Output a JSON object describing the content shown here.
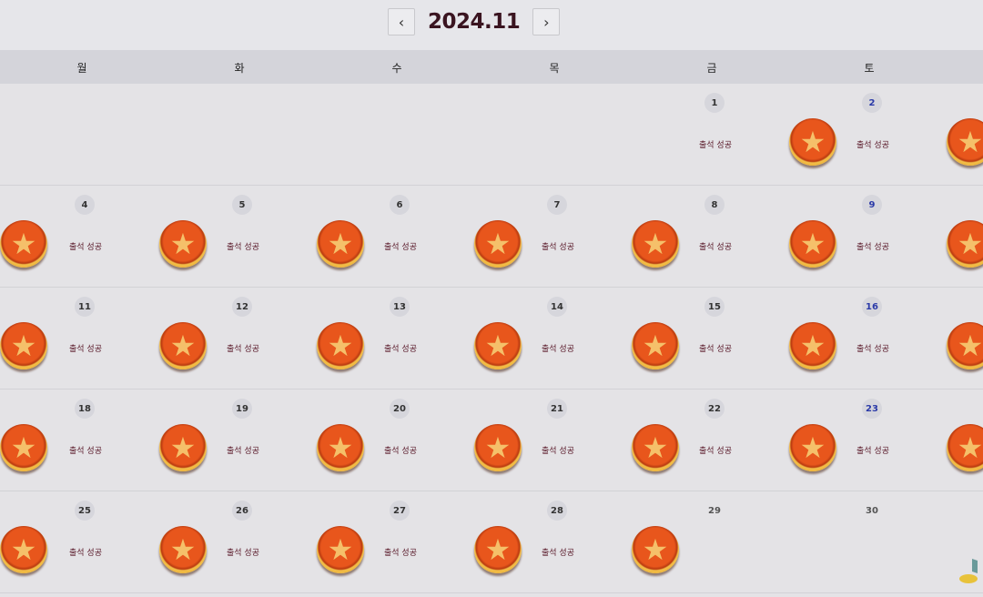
{
  "header": {
    "month": "2024.11",
    "prev_icon": "chevron-left-icon",
    "next_icon": "chevron-right-icon"
  },
  "weekdays": [
    "월",
    "화",
    "수",
    "목",
    "금",
    "토"
  ],
  "colors": {
    "saturday": "#2b3aa8",
    "title": "#3a1420",
    "coin": "#e8561c"
  },
  "weeks": [
    {
      "leading_coin": false,
      "days": [
        null,
        null,
        null,
        null,
        {
          "date": "1",
          "status": "출석 성공",
          "coin": true
        },
        {
          "date": "2",
          "status": "출석 성공",
          "coin": true
        }
      ]
    },
    {
      "leading_coin": true,
      "days": [
        {
          "date": "4",
          "status": "출석 성공",
          "coin": true
        },
        {
          "date": "5",
          "status": "출석 성공",
          "coin": true
        },
        {
          "date": "6",
          "status": "출석 성공",
          "coin": true
        },
        {
          "date": "7",
          "status": "출석 성공",
          "coin": true
        },
        {
          "date": "8",
          "status": "출석 성공",
          "coin": true
        },
        {
          "date": "9",
          "status": "출석 성공",
          "coin": true
        }
      ]
    },
    {
      "leading_coin": true,
      "days": [
        {
          "date": "11",
          "status": "출석 성공",
          "coin": true
        },
        {
          "date": "12",
          "status": "출석 성공",
          "coin": true
        },
        {
          "date": "13",
          "status": "출석 성공",
          "coin": true
        },
        {
          "date": "14",
          "status": "출석 성공",
          "coin": true
        },
        {
          "date": "15",
          "status": "출석 성공",
          "coin": true
        },
        {
          "date": "16",
          "status": "출석 성공",
          "coin": true
        }
      ]
    },
    {
      "leading_coin": true,
      "days": [
        {
          "date": "18",
          "status": "출석 성공",
          "coin": true
        },
        {
          "date": "19",
          "status": "출석 성공",
          "coin": true
        },
        {
          "date": "20",
          "status": "출석 성공",
          "coin": true
        },
        {
          "date": "21",
          "status": "출석 성공",
          "coin": true
        },
        {
          "date": "22",
          "status": "출석 성공",
          "coin": true
        },
        {
          "date": "23",
          "status": "출석 성공",
          "coin": true
        }
      ]
    },
    {
      "leading_coin": true,
      "days": [
        {
          "date": "25",
          "status": "출석 성공",
          "coin": true
        },
        {
          "date": "26",
          "status": "출석 성공",
          "coin": true
        },
        {
          "date": "27",
          "status": "출석 성공",
          "coin": true
        },
        {
          "date": "28",
          "status": "출석 성공",
          "coin": true
        },
        {
          "date": "29",
          "status": "",
          "coin": false
        },
        {
          "date": "30",
          "status": "",
          "coin": false
        }
      ]
    }
  ]
}
